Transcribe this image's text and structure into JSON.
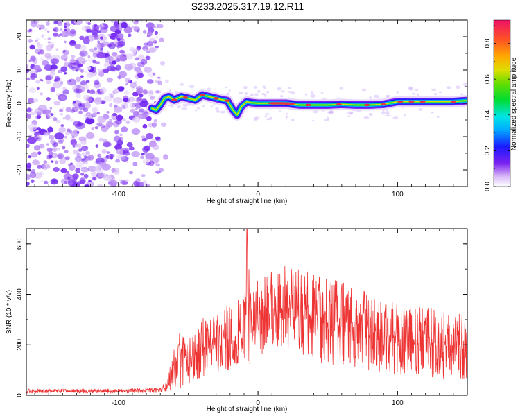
{
  "title": "S233.2025.317.19.12.R11",
  "colors": {
    "snr_line": "#ee3333",
    "axis": "#000000",
    "grid": "#000000",
    "ridge_core": "#e8343a",
    "scatter": "#7b2cf5"
  },
  "chart_data": [
    {
      "type": "heatmap",
      "name": "spectrogram",
      "xlabel": "Height of straight line (km)",
      "ylabel": "Frequency (Hz)",
      "xlim": [
        -166,
        150
      ],
      "ylim": [
        -25,
        25
      ],
      "xticks": [
        -100,
        0,
        100
      ],
      "yticks": [
        -20,
        -10,
        0,
        10,
        20
      ],
      "colorbar": {
        "label": "Normalized spectral amplitude",
        "range": [
          0.0,
          0.93
        ],
        "ticks": [
          0.0,
          0.2,
          0.4,
          0.6,
          0.8
        ]
      },
      "ridge": {
        "description": "frequency of dominant signal vs height",
        "x": [
          -76,
          -73,
          -70,
          -67,
          -64,
          -60,
          -55,
          -50,
          -45,
          -40,
          -35,
          -30,
          -25,
          -22,
          -18,
          -15,
          -12,
          -8,
          -5,
          0,
          10,
          20,
          30,
          40,
          50,
          60,
          70,
          80,
          90,
          100,
          110,
          120,
          130,
          140,
          149
        ],
        "y": [
          -1.5,
          -2.0,
          -0.5,
          1.5,
          2.0,
          1.0,
          2.0,
          1.5,
          1.0,
          2.5,
          2.0,
          1.5,
          1.0,
          0.8,
          -2.0,
          -3.5,
          -1.0,
          0.5,
          0.2,
          0.0,
          0.0,
          0.0,
          -0.5,
          -0.5,
          -0.5,
          -0.3,
          -0.5,
          -0.5,
          -0.3,
          0.5,
          0.5,
          0.5,
          0.5,
          0.5,
          0.8
        ]
      },
      "noise_region_x": [
        -166,
        -70
      ],
      "noise_density": 0.8
    },
    {
      "type": "line",
      "name": "snr",
      "xlabel": "Height of straight line (km)",
      "ylabel": "SNR (10 * v/v)",
      "xlim": [
        -166,
        150
      ],
      "ylim": [
        0,
        660
      ],
      "xticks": [
        -100,
        0,
        100
      ],
      "yticks": [
        0,
        200,
        400,
        600
      ],
      "envelope": {
        "x": [
          -166,
          -100,
          -70,
          -65,
          -60,
          -55,
          -50,
          -45,
          -40,
          -35,
          -30,
          -25,
          -20,
          -15,
          -10,
          -8,
          -5,
          0,
          10,
          20,
          30,
          40,
          50,
          60,
          70,
          80,
          90,
          100,
          110,
          120,
          130,
          140,
          150
        ],
        "upper": [
          25,
          25,
          30,
          60,
          200,
          260,
          220,
          260,
          320,
          300,
          330,
          350,
          360,
          380,
          420,
          660,
          400,
          460,
          500,
          520,
          510,
          490,
          470,
          450,
          430,
          410,
          380,
          370,
          360,
          350,
          340,
          330,
          310
        ],
        "lower": [
          8,
          8,
          10,
          15,
          20,
          30,
          40,
          60,
          70,
          80,
          90,
          100,
          100,
          110,
          120,
          130,
          100,
          150,
          200,
          180,
          160,
          140,
          120,
          110,
          100,
          90,
          90,
          80,
          80,
          70,
          70,
          60,
          60
        ]
      }
    }
  ]
}
